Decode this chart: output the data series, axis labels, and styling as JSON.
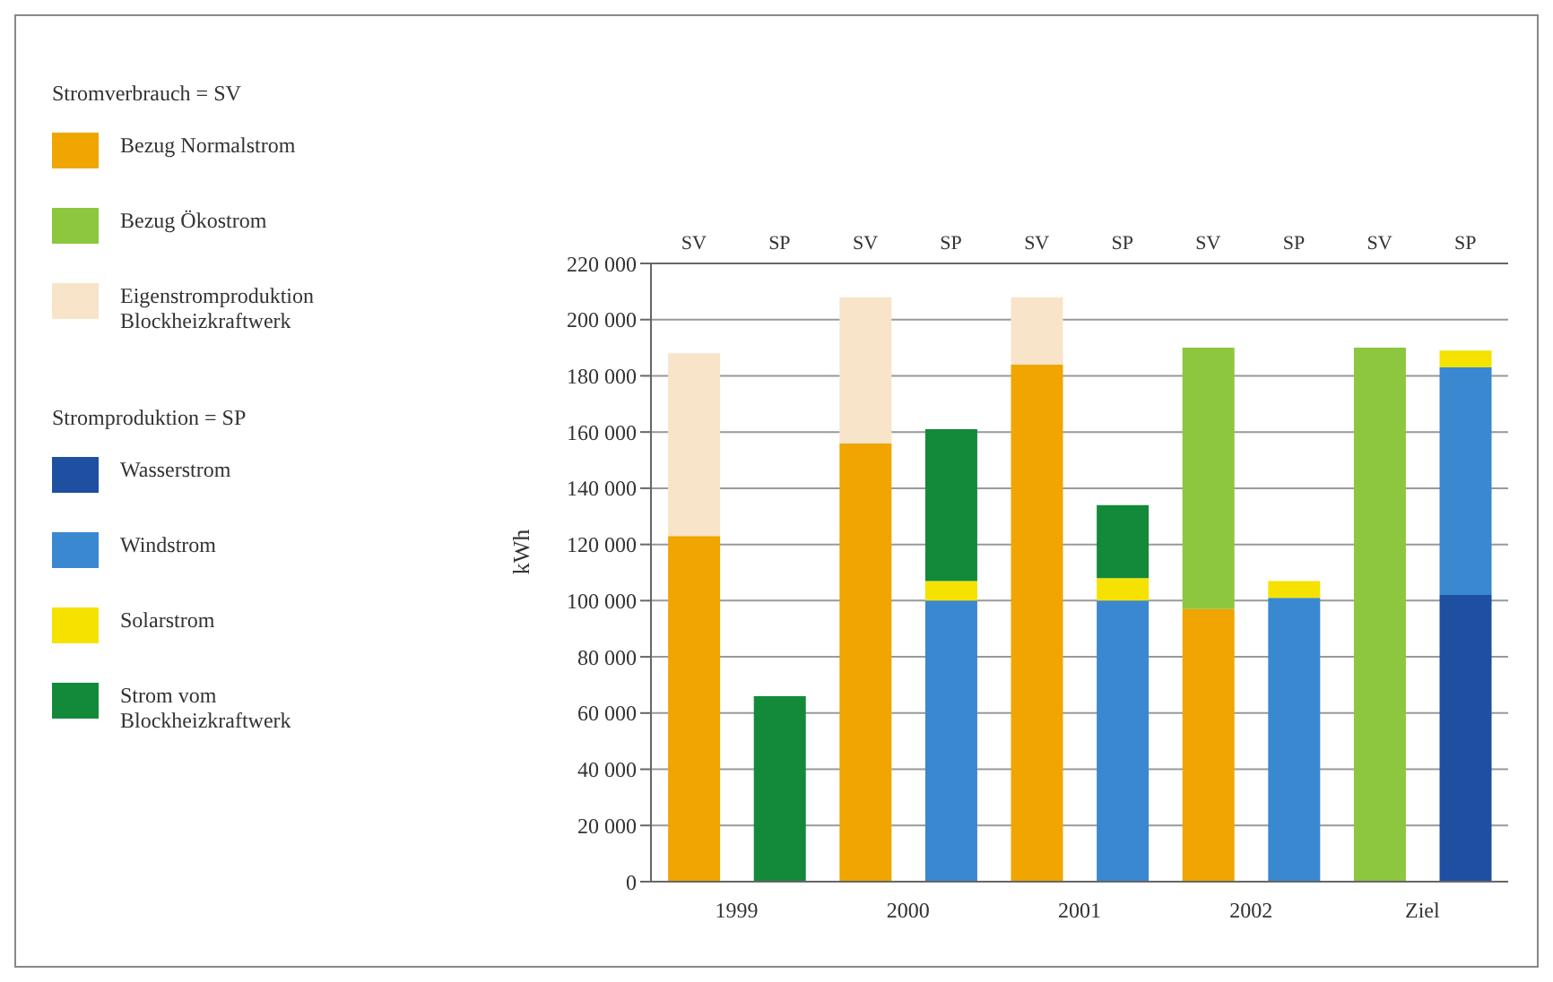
{
  "chart_data": {
    "type": "bar",
    "stacked": true,
    "ylabel": "kWh",
    "legend_title": [
      "Stromverbrauch = SV",
      "Stromproduktion = SP"
    ],
    "categories": [
      "SV",
      "SP",
      "SV",
      "SP",
      "SV",
      "SP",
      "SV",
      "SP",
      "SV",
      "SP"
    ],
    "annotations": [
      "1999",
      "2000",
      "2001",
      "2002",
      "Ziel"
    ],
    "series": [
      {
        "name": "Bezug Normalstrom",
        "color": "#f0a500",
        "values": [
          123000,
          null,
          156000,
          null,
          184000,
          null,
          97000,
          null,
          null,
          null
        ]
      },
      {
        "name": "Bezug Ökostrom",
        "color": "#8dc63f",
        "values": [
          null,
          null,
          null,
          null,
          null,
          null,
          93000,
          null,
          190000,
          null
        ]
      },
      {
        "name": "Eigenstromproduktion Blockheizkraftwerk",
        "color": "#f8e4c8",
        "values": [
          65000,
          null,
          52000,
          null,
          24000,
          null,
          null,
          null,
          null,
          null
        ]
      },
      {
        "name": "Wasserstrom",
        "color": "#1f4fa0",
        "values": [
          null,
          null,
          null,
          null,
          null,
          null,
          null,
          null,
          null,
          102000
        ]
      },
      {
        "name": "Windstrom",
        "color": "#3a88d0",
        "values": [
          null,
          null,
          null,
          100000,
          null,
          100000,
          null,
          101000,
          null,
          81000
        ]
      },
      {
        "name": "Solarstrom",
        "color": "#f5e200",
        "values": [
          null,
          null,
          null,
          7000,
          null,
          8000,
          null,
          6000,
          null,
          6000
        ]
      },
      {
        "name": "Strom vom Blockheizkraftwerk",
        "color": "#128a3a",
        "values": [
          null,
          66000,
          null,
          54000,
          null,
          26000,
          null,
          null,
          null,
          null
        ]
      }
    ],
    "ylim": [
      0,
      220000
    ],
    "yticks": [
      0,
      {
        "value": 20000,
        "label": "20 000"
      },
      {
        "value": 40000,
        "label": "40 000"
      },
      {
        "value": 60000,
        "label": "60 000"
      },
      {
        "value": 80000,
        "label": "80 000"
      },
      {
        "value": 100000,
        "label": "100 000"
      },
      {
        "value": 120000,
        "label": "120 000"
      },
      {
        "value": 140000,
        "label": "140 000"
      },
      {
        "value": 160000,
        "label": "160 000"
      },
      {
        "value": 180000,
        "label": "180 000"
      },
      {
        "value": 200000,
        "label": "200 000"
      },
      {
        "value": 220000,
        "label": "220 000"
      }
    ],
    "grid": "y",
    "legend": "left"
  }
}
